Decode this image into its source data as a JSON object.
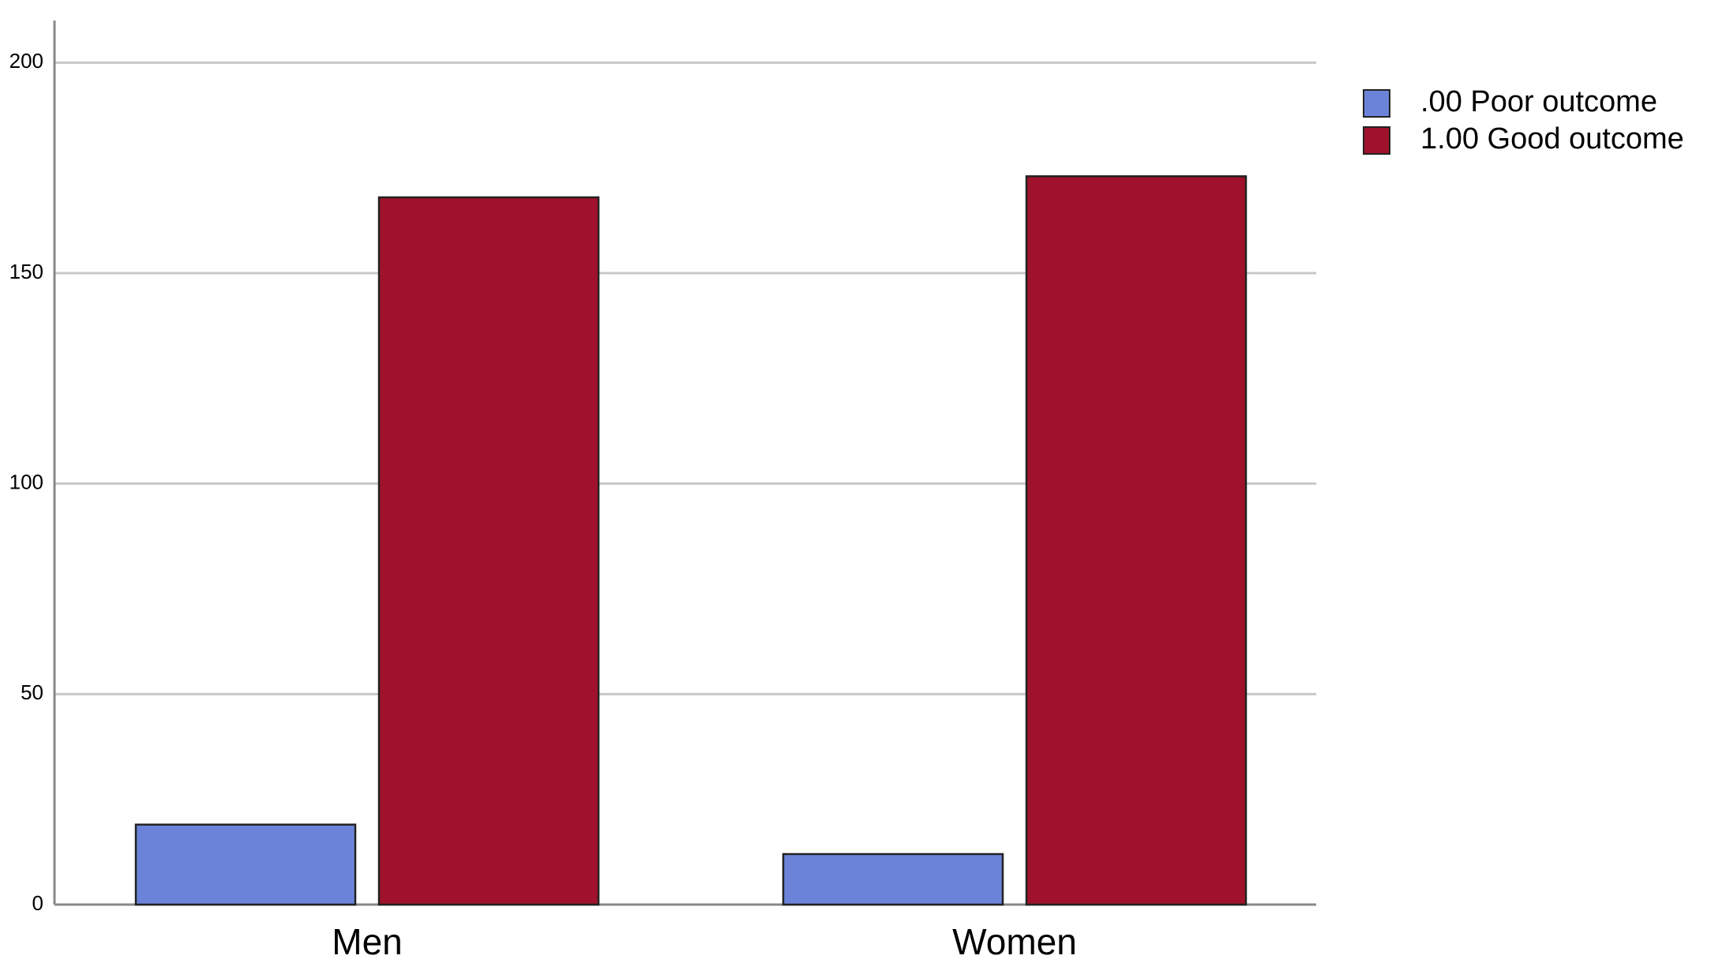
{
  "chart_data": {
    "type": "bar",
    "categories": [
      "Men",
      "Women"
    ],
    "series": [
      {
        "name": ".00 Poor outcome",
        "color": "#6b84d9",
        "values": [
          19,
          12
        ]
      },
      {
        "name": "1.00 Good outcome",
        "color": "#a0122b",
        "values": [
          168,
          173
        ]
      }
    ],
    "ylim": [
      0,
      210
    ],
    "yticks": [
      0,
      50,
      100,
      150,
      200
    ],
    "grid": true,
    "legend": "right"
  }
}
